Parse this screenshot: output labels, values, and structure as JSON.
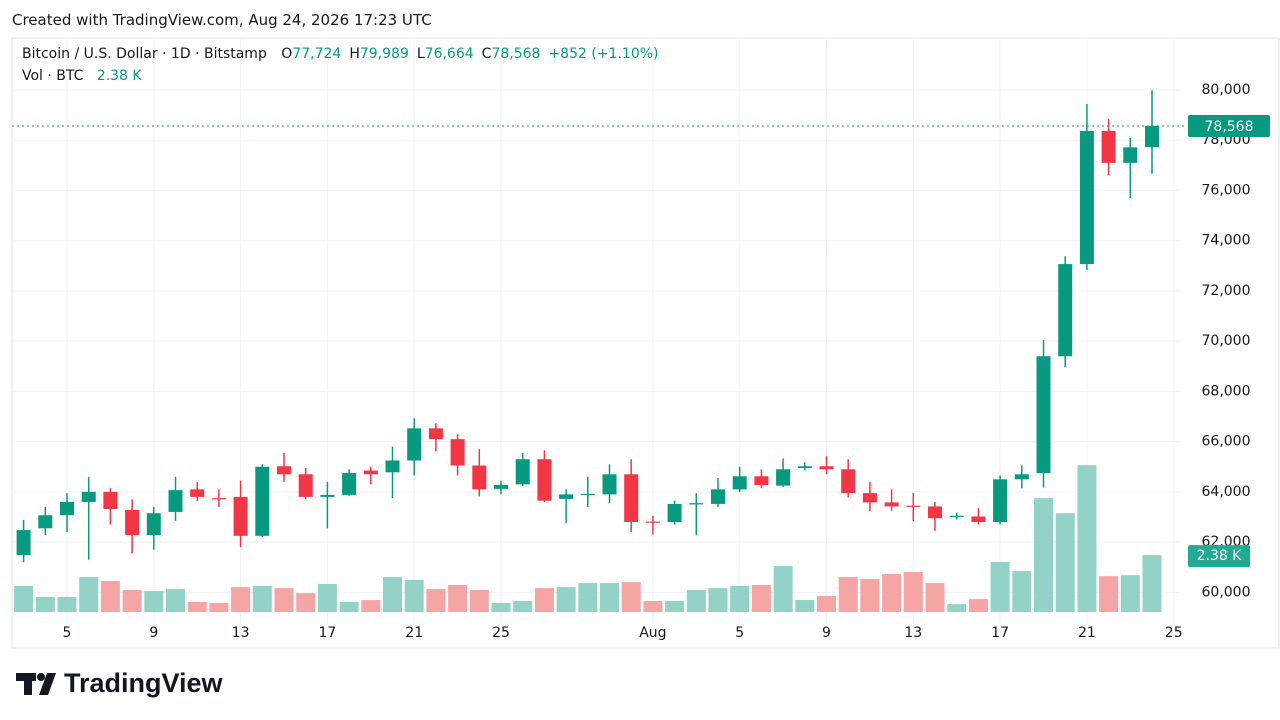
{
  "credit": "Created with TradingView.com, Aug 24, 2026 17:23 UTC",
  "footer_logo": "TradingView",
  "chart_data": {
    "type": "candlestick",
    "title": "Bitcoin / U.S. Dollar · 1D · Bitstamp",
    "ohlc_legend": [
      {
        "key": "O",
        "label": "77,724"
      },
      {
        "key": "H",
        "label": "79,989"
      },
      {
        "key": "L",
        "label": "76,664"
      },
      {
        "key": "C",
        "label": "78,568"
      }
    ],
    "change_label": "+852 (+1.10%)",
    "volume_title": "Vol · BTC",
    "volume_label": "2.38 K",
    "last_price_label": "78,568",
    "categories": [
      null,
      null,
      "5",
      null,
      null,
      null,
      "9",
      null,
      null,
      null,
      "13",
      null,
      null,
      null,
      "17",
      null,
      null,
      null,
      "21",
      null,
      null,
      null,
      "25",
      null,
      null,
      null,
      null,
      null,
      null,
      "Aug",
      null,
      null,
      null,
      "5",
      null,
      null,
      null,
      "9",
      null,
      null,
      null,
      "13",
      null,
      null,
      null,
      "17",
      null,
      null,
      null,
      "21",
      null,
      null,
      null,
      "25"
    ],
    "open": [
      61480,
      62550,
      63070,
      63600,
      64000,
      63280,
      62280,
      63200,
      64100,
      63750,
      63800,
      62250,
      65020,
      64700,
      63800,
      63880,
      64850,
      64780,
      65250,
      66530,
      66100,
      65050,
      64120,
      64300,
      65300,
      63720,
      63880,
      63900,
      64700,
      62820,
      62800,
      63500,
      63520,
      64100,
      64620,
      64250,
      64950,
      65020,
      64900,
      63950,
      63580,
      63450,
      63420,
      63020,
      63020,
      62800,
      64500,
      64750,
      69400,
      73070,
      78370,
      77100,
      77724,
      null
    ],
    "high": [
      62880,
      63400,
      63950,
      64600,
      64150,
      63700,
      63400,
      64600,
      64400,
      64100,
      64450,
      65100,
      65550,
      64950,
      64400,
      64900,
      65000,
      65800,
      66930,
      66730,
      66300,
      65700,
      64450,
      65550,
      65650,
      64100,
      64600,
      65100,
      65300,
      63050,
      63650,
      63950,
      64550,
      65000,
      64900,
      65330,
      65180,
      65420,
      65300,
      64400,
      64100,
      63960,
      63600,
      63170,
      63350,
      64650,
      65050,
      70040,
      73380,
      79440,
      78840,
      78090,
      79989,
      null
    ],
    "low": [
      61200,
      62280,
      62400,
      61300,
      62700,
      61550,
      61700,
      62850,
      63650,
      63400,
      61800,
      62200,
      64400,
      63700,
      62550,
      63850,
      64300,
      63750,
      64650,
      65620,
      64650,
      63820,
      63900,
      64240,
      63600,
      62750,
      63400,
      63550,
      62400,
      62300,
      62700,
      62270,
      63400,
      64000,
      64150,
      64200,
      64850,
      64700,
      63780,
      63230,
      63260,
      62840,
      62450,
      62900,
      62700,
      62700,
      64140,
      64170,
      68960,
      72830,
      76610,
      75700,
      76664,
      null
    ],
    "close": [
      62480,
      63070,
      63600,
      64000,
      63320,
      62280,
      63150,
      64070,
      63800,
      63700,
      62250,
      65000,
      64700,
      63800,
      63880,
      64750,
      64700,
      65250,
      66530,
      66100,
      65050,
      64100,
      64280,
      65300,
      63650,
      63900,
      63920,
      64700,
      62800,
      62780,
      63520,
      63550,
      64100,
      64620,
      64270,
      64900,
      65020,
      64900,
      63950,
      63580,
      63420,
      63420,
      62950,
      63050,
      62800,
      64500,
      64700,
      69400,
      73070,
      78370,
      77100,
      77716,
      78568,
      null
    ],
    "volume": [
      1090,
      630,
      630,
      1460,
      1300,
      920,
      880,
      960,
      420,
      380,
      1040,
      1090,
      1000,
      790,
      1170,
      420,
      500,
      1460,
      1340,
      960,
      1130,
      920,
      380,
      460,
      1000,
      1040,
      1210,
      1210,
      1250,
      460,
      460,
      920,
      1000,
      1090,
      1130,
      1920,
      500,
      670,
      1460,
      1380,
      1590,
      1670,
      1210,
      330,
      540,
      2090,
      1710,
      4760,
      4130,
      6140,
      1500,
      1540,
      2380,
      null
    ],
    "ylim": [
      58700,
      82070
    ],
    "yticks": [
      {
        "value": 60000,
        "label": "60,000"
      },
      {
        "value": 62000,
        "label": "62,000"
      },
      {
        "value": 64000,
        "label": "64,000"
      },
      {
        "value": 66000,
        "label": "66,000"
      },
      {
        "value": 68000,
        "label": "68,000"
      },
      {
        "value": 70000,
        "label": "70,000"
      },
      {
        "value": 72000,
        "label": "72,000"
      },
      {
        "value": 74000,
        "label": "74,000"
      },
      {
        "value": 76000,
        "label": "76,000"
      },
      {
        "value": 78000,
        "label": "78,000"
      },
      {
        "value": 80000,
        "label": "80,000"
      }
    ],
    "volume_ylim": [
      0,
      24000
    ],
    "grid": true,
    "up_color": "#089981",
    "down_color": "#f23645",
    "up_volume_color": "#93d2c6",
    "down_volume_color": "#f5a6a4"
  }
}
